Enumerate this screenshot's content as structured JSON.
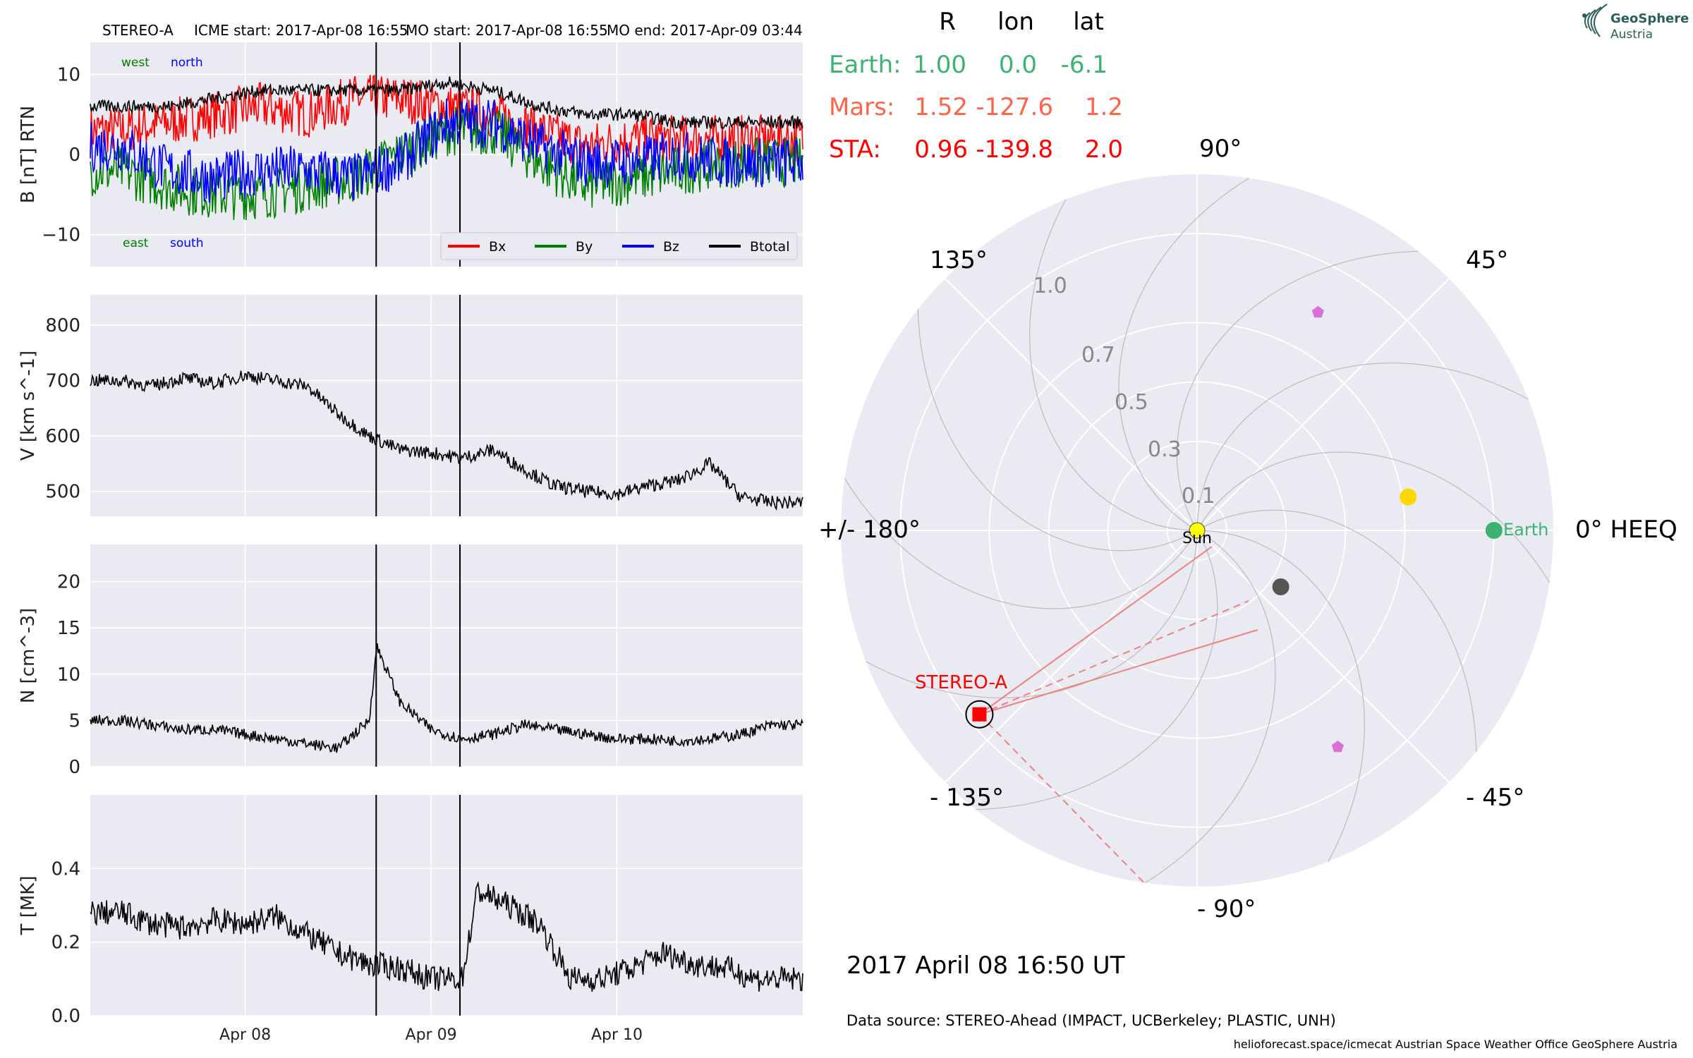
{
  "header": {
    "spacecraft": "STEREO-A",
    "icme_start": "ICME start: 2017-Apr-08 16:55",
    "mo_start": "MO start: 2017-Apr-08 16:55",
    "mo_end": "MO end: 2017-Apr-09 03:44"
  },
  "logo": {
    "line1": "GeoSphere",
    "line2": "Austria",
    "icon": "spiral-logo-icon"
  },
  "positions_table": {
    "headers": [
      "R",
      "lon",
      "lat"
    ],
    "rows": [
      {
        "name": "Earth:",
        "R": "1.00",
        "lon": "0.0",
        "lat": "-6.1",
        "color": "#3cb371"
      },
      {
        "name": "Mars:",
        "R": "1.52",
        "lon": "-127.6",
        "lat": "1.2",
        "color": "#ff6347"
      },
      {
        "name": "STA:",
        "R": "0.96",
        "lon": "-139.8",
        "lat": "2.0",
        "color": "#ff0000"
      }
    ]
  },
  "polar_plot": {
    "angle_labels": [
      "90°",
      "45°",
      "0° HEEQ",
      "- 45°",
      "- 90°",
      "- 135°",
      "+/- 180°",
      "135°"
    ],
    "radial_labels": [
      "0.1",
      "0.3",
      "0.5",
      "0.7",
      "1.0"
    ],
    "sun_label": "Sun",
    "earth_label": "Earth",
    "sta_label": "STEREO-A",
    "timestamp": "2017 April 08  16:50 UT"
  },
  "footer": {
    "data_source": "Data source: STEREO-Ahead (IMPACT, UCBerkeley; PLASTIC, UNH)",
    "credits": "helioforecast.space/icmecat   Austrian Space Weather Office   GeoSphere Austria"
  },
  "colors": {
    "panel_bg": "#eaeaf2",
    "bx": "#ff0000",
    "by": "#008000",
    "bz": "#0000ff",
    "btotal": "#000000"
  },
  "chart_data": [
    {
      "type": "line",
      "panel": "magnetic field",
      "ylabel": "B [nT] RTN",
      "x_ticks": [
        "Apr 08",
        "Apr 09",
        "Apr 10"
      ],
      "x_range": [
        "2017-04-07 04:00",
        "2017-04-10 16:00"
      ],
      "ylim": [
        -14,
        14
      ],
      "y_ticks": [
        10,
        0,
        -10
      ],
      "y_tick_labels": [
        "10",
        "0",
        "−10"
      ],
      "annotations": {
        "top_left_1": "west",
        "top_left_2": "north",
        "bottom_left_1": "east",
        "bottom_left_2": "south"
      },
      "vlines": [
        "2017-04-08 16:55",
        "2017-04-09 03:44"
      ],
      "legend_position": "lower right",
      "series": [
        {
          "name": "Bx",
          "color": "#ff0000",
          "x": [
            4,
            10,
            16,
            22,
            28,
            34,
            40,
            46,
            52,
            58,
            64,
            70,
            76,
            82,
            88
          ],
          "y": [
            3,
            4,
            5,
            6,
            5,
            7,
            7,
            6,
            5,
            3,
            1,
            2,
            2,
            2,
            2
          ]
        },
        {
          "name": "By",
          "color": "#008000",
          "x": [
            4,
            10,
            16,
            22,
            28,
            34,
            40,
            46,
            52,
            58,
            64,
            70,
            76,
            82,
            88
          ],
          "y": [
            -2,
            -4,
            -5,
            -5,
            -4,
            -3,
            0,
            3,
            3,
            -1,
            -4,
            -3,
            -2,
            -1,
            -1
          ]
        },
        {
          "name": "Bz",
          "color": "#0000ff",
          "x": [
            4,
            10,
            16,
            22,
            28,
            34,
            40,
            46,
            52,
            58,
            64,
            70,
            76,
            82,
            88
          ],
          "y": [
            1,
            -2,
            -3,
            -2,
            -2,
            -3,
            -1,
            4,
            4,
            1,
            -1,
            -1,
            0,
            -1,
            -1
          ]
        },
        {
          "name": "Btotal",
          "color": "#000000",
          "x": [
            4,
            10,
            16,
            22,
            28,
            34,
            40,
            46,
            52,
            58,
            64,
            70,
            76,
            82,
            88
          ],
          "y": [
            6,
            6,
            7,
            8,
            8,
            8,
            8,
            9,
            8,
            6,
            5,
            5,
            4,
            4,
            4
          ]
        }
      ]
    },
    {
      "type": "line",
      "panel": "speed",
      "ylabel": "V [km s^-1]",
      "ylim": [
        455,
        855
      ],
      "y_ticks": [
        800,
        700,
        600,
        500
      ],
      "vlines": [
        "2017-04-08 16:55",
        "2017-04-09 03:44"
      ],
      "x": [
        4,
        8,
        12,
        16,
        20,
        24,
        28,
        32,
        36,
        40,
        44,
        48,
        52,
        56,
        60,
        64,
        68,
        72,
        76,
        80,
        84,
        88
      ],
      "y": [
        700,
        690,
        705,
        695,
        710,
        700,
        690,
        640,
        600,
        575,
        570,
        560,
        575,
        540,
        510,
        500,
        495,
        510,
        520,
        550,
        490,
        480
      ]
    },
    {
      "type": "line",
      "panel": "density",
      "ylabel": "N [cm^-3]",
      "ylim": [
        0,
        24
      ],
      "y_ticks": [
        20,
        15,
        10,
        5,
        0
      ],
      "vlines": [
        "2017-04-08 16:55",
        "2017-04-09 03:44"
      ],
      "x": [
        4,
        8,
        12,
        16,
        20,
        24,
        28,
        32,
        36,
        37,
        40,
        44,
        48,
        52,
        56,
        60,
        64,
        68,
        72,
        76,
        80,
        84,
        88
      ],
      "y": [
        5,
        4.5,
        4,
        4,
        3.5,
        3,
        2.5,
        2,
        5,
        13,
        7,
        4,
        3,
        3.5,
        4.5,
        4,
        3.5,
        3,
        3,
        2.8,
        3,
        3.5,
        4.5
      ]
    },
    {
      "type": "line",
      "panel": "temperature",
      "ylabel": "T [MK]",
      "ylim": [
        0,
        0.6
      ],
      "y_ticks": [
        0.4,
        0.2,
        0.0
      ],
      "y_tick_labels": [
        "0.4",
        "0.2",
        "0.0"
      ],
      "vlines": [
        "2017-04-08 16:55",
        "2017-04-09 03:44"
      ],
      "x": [
        4,
        8,
        12,
        16,
        20,
        24,
        28,
        32,
        36,
        40,
        44,
        48,
        50,
        54,
        58,
        62,
        66,
        70,
        74,
        78,
        82,
        86,
        88
      ],
      "y": [
        0.28,
        0.25,
        0.24,
        0.26,
        0.25,
        0.27,
        0.22,
        0.17,
        0.14,
        0.13,
        0.1,
        0.1,
        0.34,
        0.3,
        0.25,
        0.1,
        0.1,
        0.13,
        0.17,
        0.14,
        0.13,
        0.1,
        0.1
      ]
    },
    {
      "type": "scatter",
      "panel": "polar heliospheric positions",
      "projection": "polar",
      "rlim": [
        0,
        1.2
      ],
      "points": [
        {
          "name": "Sun",
          "r": 0,
          "lon_deg": 0,
          "color": "#ffff00"
        },
        {
          "name": "Earth",
          "r": 1.0,
          "lon_deg": 0,
          "color": "#3cb371"
        },
        {
          "name": "STEREO-A",
          "r": 0.96,
          "lon_deg": -139.8,
          "color": "#ff0000"
        },
        {
          "name": "",
          "r": 0.72,
          "lon_deg": 9,
          "color": "#ffd700"
        },
        {
          "name": "",
          "r": 0.34,
          "lon_deg": -34,
          "color": "#555555"
        },
        {
          "name": "",
          "r": 0.84,
          "lon_deg": 61,
          "color": "#da70d6"
        },
        {
          "name": "",
          "r": 0.87,
          "lon_deg": -57,
          "color": "#da70d6"
        }
      ]
    }
  ]
}
